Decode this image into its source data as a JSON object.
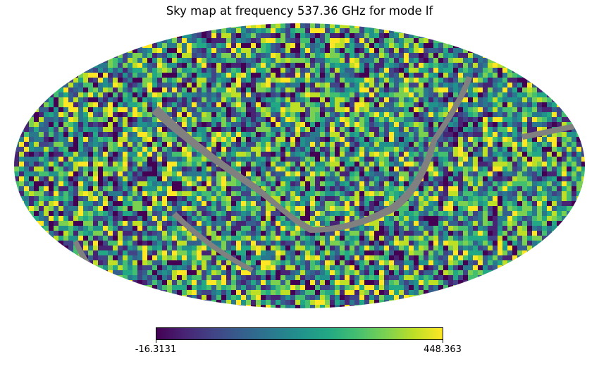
{
  "chart_data": {
    "type": "heatmap",
    "projection": "mollweide",
    "title": "Sky map at frequency 537.36 GHz for mode lf",
    "colormap": "viridis",
    "colorbar": {
      "min": -16.3131,
      "max": 448.363,
      "min_label": "-16.3131",
      "max_label": "448.363"
    },
    "masked_color": "#808080",
    "background": "#ffffff"
  }
}
